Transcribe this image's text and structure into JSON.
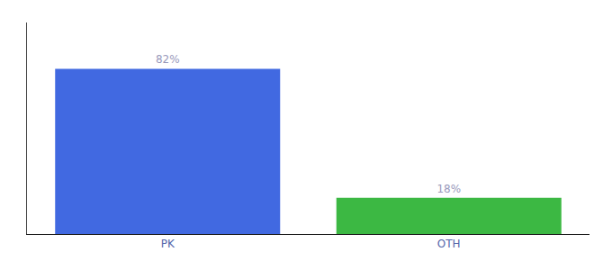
{
  "chart_data": {
    "type": "bar",
    "categories": [
      "PK",
      "OTH"
    ],
    "values": [
      82,
      18
    ],
    "value_labels": [
      "82%",
      "18%"
    ],
    "colors": [
      "#4169e1",
      "#3cb843"
    ],
    "data_labels": true,
    "ylim": [
      0,
      105
    ],
    "yticks": [],
    "tick_labels": "x",
    "grid": false
  }
}
